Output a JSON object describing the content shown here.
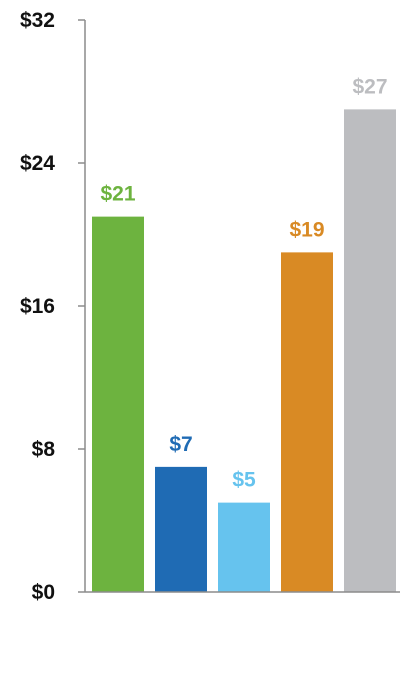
{
  "chart_data": {
    "type": "bar",
    "categories": [
      "",
      "",
      "",
      "",
      ""
    ],
    "values": [
      21,
      7,
      5,
      19,
      27
    ],
    "data_labels": [
      "$21",
      "$7",
      "$5",
      "$19",
      "$27"
    ],
    "colors": [
      "#6db33f",
      "#1f6bb4",
      "#66c3ee",
      "#d98a24",
      "#bcbdc0"
    ],
    "yticks": [
      0,
      8,
      16,
      24,
      32
    ],
    "ytick_labels": [
      "$0",
      "$8",
      "$16",
      "$24",
      "$32"
    ],
    "ylim": [
      0,
      32
    ],
    "grid": false,
    "legend": "none",
    "title": "",
    "xlabel": "",
    "ylabel": ""
  }
}
